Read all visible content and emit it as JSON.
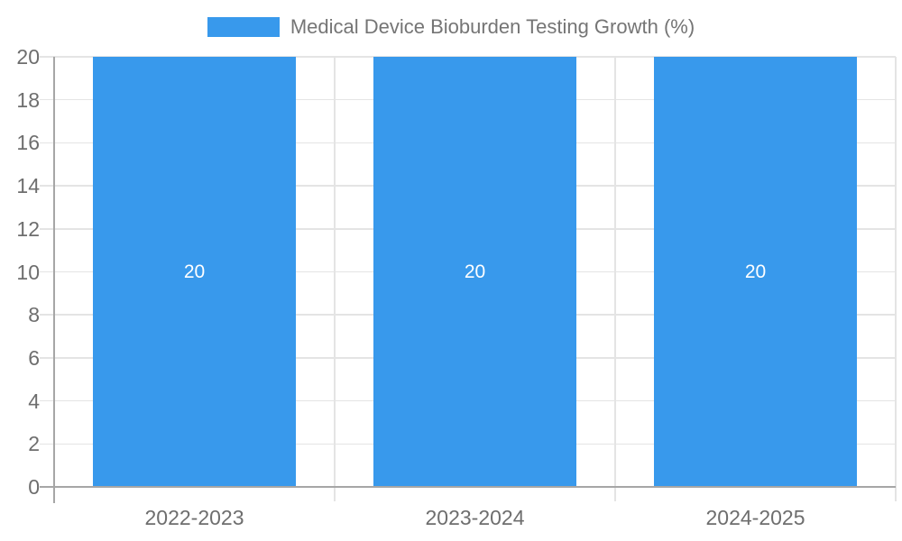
{
  "colors": {
    "bar": "#3899ec",
    "grid": "#e4e4e4",
    "axis": "#a6a6a6",
    "tick_text": "#6e6e6e",
    "title_text": "#757575",
    "bar_label": "#ffffff"
  },
  "legend": {
    "swatch_icon": "series-color-swatch",
    "label": "Medical Device Bioburden Testing Growth (%)"
  },
  "chart_data": {
    "type": "bar",
    "title": "Medical Device Bioburden Testing Growth (%)",
    "categories": [
      "2022-2023",
      "2023-2024",
      "2024-2025"
    ],
    "values": [
      20,
      20,
      20
    ],
    "bar_value_labels": [
      "20",
      "20",
      "20"
    ],
    "xlabel": "",
    "ylabel": "",
    "ylim": [
      0,
      20
    ],
    "yticks": [
      0,
      2,
      4,
      6,
      8,
      10,
      12,
      14,
      16,
      18,
      20
    ],
    "grid": true,
    "legend_position": "top-center"
  }
}
